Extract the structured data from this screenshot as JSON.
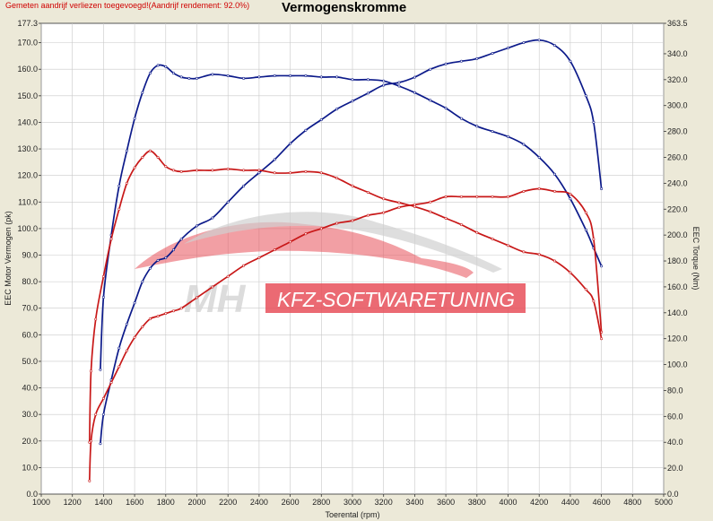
{
  "header": {
    "notice": "Gemeten aandrijf verliezen toegevoegd!(Aandrijf rendement: 92.0%)",
    "title": "Vermogenskromme"
  },
  "watermark": {
    "logo_text": "MH",
    "brand_text": "KFZ-SOFTWARETUNING"
  },
  "colors": {
    "stock": "#c81818",
    "tuned": "#0c1a8a",
    "plot_bg": "#ffffff",
    "grid": "#c9c9c9",
    "watermark": "#e8505a"
  },
  "chart_data": {
    "type": "line",
    "title": "Vermogenskromme",
    "xlabel": "Toerental (rpm)",
    "ylabel_left": "EEC Motor Vermogen (pk)",
    "ylabel_right": "EEC Torque (Nm)",
    "xlim": [
      1000,
      5000
    ],
    "ylim_left": [
      0,
      177.3
    ],
    "ylim_right": [
      0,
      363.5
    ],
    "x_ticks": [
      1000,
      1200,
      1400,
      1600,
      1800,
      2000,
      2200,
      2400,
      2600,
      2800,
      3000,
      3200,
      3400,
      3600,
      3800,
      4000,
      4200,
      4400,
      4600,
      4800,
      5000
    ],
    "y_ticks_left": [
      0.0,
      10.0,
      20.0,
      30.0,
      40.0,
      50.0,
      60.0,
      70.0,
      80.0,
      90.0,
      100.0,
      110.0,
      120.0,
      130.0,
      140.0,
      150.0,
      160.0,
      170.0,
      177.3
    ],
    "y_ticks_right": [
      0.0,
      20.0,
      40.0,
      60.0,
      80.0,
      100.0,
      120.0,
      140.0,
      160.0,
      180.0,
      200.0,
      220.0,
      240.0,
      260.0,
      280.0,
      300.0,
      320.0,
      340.0,
      363.5
    ],
    "grid": true,
    "series": [
      {
        "axis": "left",
        "color": "#0c1a8a",
        "x": [
          1380,
          1400,
          1450,
          1500,
          1550,
          1600,
          1650,
          1700,
          1750,
          1800,
          1850,
          1900,
          2000,
          2100,
          2200,
          2300,
          2400,
          2500,
          2600,
          2700,
          2800,
          2900,
          3000,
          3100,
          3200,
          3300,
          3400,
          3500,
          3600,
          3700,
          3800,
          3900,
          4000,
          4100,
          4200,
          4300,
          4400,
          4500,
          4550,
          4600
        ],
        "y": [
          19,
          30,
          43,
          55,
          64,
          72,
          80,
          85,
          88,
          89,
          92,
          96,
          101,
          104,
          110,
          116,
          121,
          126,
          132,
          137,
          141,
          145,
          148,
          151,
          154,
          155,
          157,
          160,
          162,
          163,
          164,
          166,
          168,
          170,
          171,
          169,
          163,
          150,
          140,
          115
        ]
      },
      {
        "axis": "right",
        "color": "#0c1a8a",
        "x": [
          1380,
          1400,
          1450,
          1500,
          1550,
          1600,
          1650,
          1700,
          1750,
          1800,
          1850,
          1900,
          1950,
          2000,
          2100,
          2200,
          2300,
          2400,
          2500,
          2600,
          2700,
          2800,
          2900,
          3000,
          3100,
          3200,
          3300,
          3400,
          3500,
          3600,
          3700,
          3800,
          3900,
          4000,
          4100,
          4200,
          4300,
          4400,
          4500,
          4550,
          4600
        ],
        "y": [
          96,
          152,
          200,
          238,
          265,
          290,
          310,
          325,
          331,
          330,
          325,
          322,
          321,
          321,
          324,
          323,
          321,
          322,
          323,
          323,
          323,
          322,
          322,
          320,
          320,
          319,
          315,
          310,
          304,
          298,
          290,
          284,
          280,
          276,
          270,
          260,
          247,
          228,
          204,
          190,
          176
        ]
      },
      {
        "axis": "left",
        "color": "#c81818",
        "x": [
          1310,
          1320,
          1350,
          1400,
          1450,
          1500,
          1550,
          1600,
          1650,
          1700,
          1750,
          1800,
          1850,
          1900,
          2000,
          2100,
          2200,
          2300,
          2400,
          2500,
          2600,
          2700,
          2800,
          2900,
          3000,
          3100,
          3200,
          3300,
          3400,
          3500,
          3600,
          3700,
          3800,
          3900,
          4000,
          4100,
          4200,
          4300,
          4400,
          4500,
          4550,
          4600
        ],
        "y": [
          5,
          20,
          30,
          36,
          42,
          48,
          54,
          59,
          63,
          66,
          67,
          68,
          69,
          70,
          74,
          78,
          82,
          86,
          89,
          92,
          95,
          98,
          100,
          102,
          103,
          105,
          106,
          108,
          109,
          110,
          112,
          112,
          112,
          112,
          112,
          114,
          115,
          114,
          113,
          106,
          96,
          61
        ]
      },
      {
        "axis": "right",
        "color": "#c81818",
        "x": [
          1310,
          1320,
          1350,
          1400,
          1450,
          1500,
          1550,
          1600,
          1650,
          1700,
          1750,
          1800,
          1850,
          1900,
          2000,
          2100,
          2200,
          2300,
          2400,
          2500,
          2600,
          2700,
          2800,
          2900,
          3000,
          3100,
          3200,
          3300,
          3400,
          3500,
          3600,
          3700,
          3800,
          3900,
          4000,
          4100,
          4200,
          4300,
          4400,
          4500,
          4550,
          4600
        ],
        "y": [
          40,
          95,
          135,
          168,
          197,
          220,
          240,
          252,
          260,
          265,
          260,
          253,
          250,
          249,
          250,
          250,
          251,
          250,
          250,
          248,
          248,
          249,
          248,
          244,
          238,
          233,
          228,
          225,
          222,
          218,
          213,
          208,
          202,
          197,
          192,
          187,
          185,
          180,
          171,
          158,
          149,
          120
        ]
      }
    ]
  }
}
